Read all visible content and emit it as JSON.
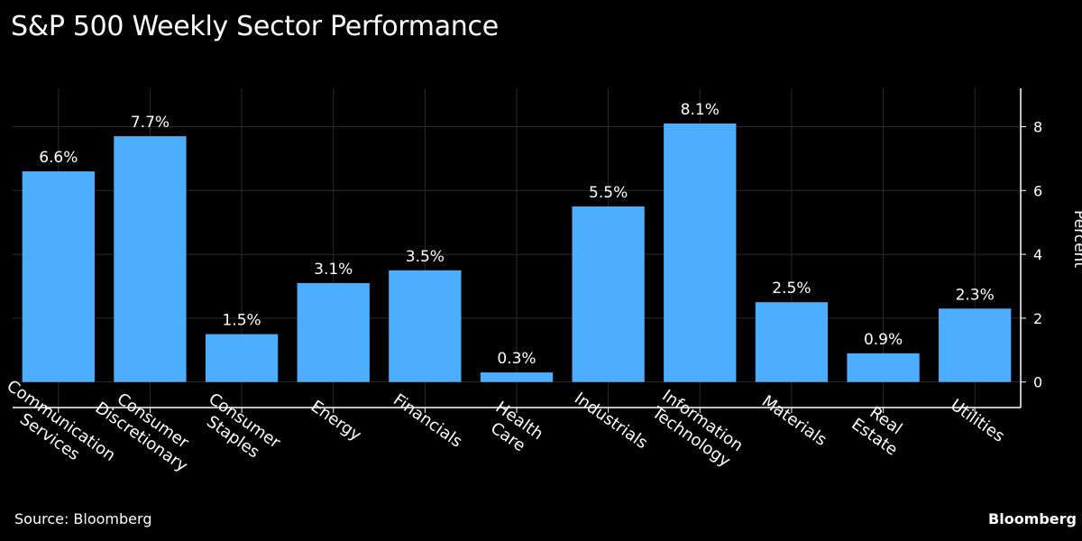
{
  "title": "S&P 500 Weekly Sector Performance",
  "source": "Source: Bloomberg",
  "brand": "Bloomberg",
  "colors": {
    "background": "#000000",
    "bar": "#4daeff",
    "grid": "#2a2a2a",
    "axis": "#ffffff",
    "text": "#ffffff"
  },
  "chart_data": {
    "type": "bar",
    "categories": [
      [
        "Communication",
        "Services"
      ],
      [
        "Consumer",
        "Discretionary"
      ],
      [
        "Consumer",
        "Staples"
      ],
      [
        "Energy"
      ],
      [
        "Financials"
      ],
      [
        "Health",
        "Care"
      ],
      [
        "Industrials"
      ],
      [
        "Information",
        "Technology"
      ],
      [
        "Materials"
      ],
      [
        "Real",
        "Estate"
      ],
      [
        "Utilities"
      ]
    ],
    "values": [
      6.6,
      7.7,
      1.5,
      3.1,
      3.5,
      0.3,
      5.5,
      8.1,
      2.5,
      0.9,
      2.3
    ],
    "data_labels": [
      "6.6%",
      "7.7%",
      "1.5%",
      "3.1%",
      "3.5%",
      "0.3%",
      "5.5%",
      "8.1%",
      "2.5%",
      "0.9%",
      "2.3%"
    ],
    "ylabel": "Percent",
    "y_axis_side": "right",
    "ylim": [
      -0.8,
      9.2
    ],
    "yticks": [
      0,
      2,
      4,
      6,
      8
    ],
    "grid": true,
    "legend": "none"
  }
}
